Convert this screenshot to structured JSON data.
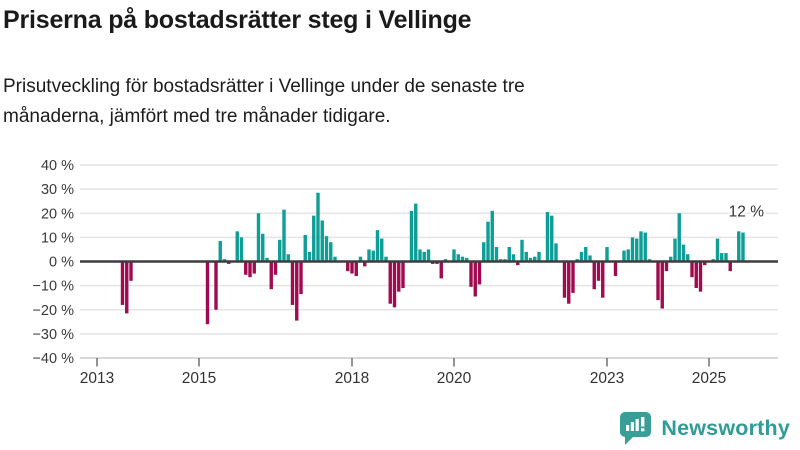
{
  "header": {
    "title": "Priserna på bostadsrätter steg i Vellinge",
    "subtitle": "Prisutveckling för bostadsrätter i Vellinge under de senaste tre\nmånaderna, jämfört med tre månader tidigare."
  },
  "chart_data": {
    "type": "bar",
    "title": "Priserna på bostadsrätter steg i Vellinge",
    "unit": "%",
    "ylim": [
      -40,
      40
    ],
    "grid": true,
    "y_ticks": [
      40,
      30,
      20,
      10,
      0,
      -10,
      -20,
      -30,
      -40
    ],
    "y_tick_labels": [
      "40 %",
      "30 %",
      "20 %",
      "10 %",
      "0 %",
      "−10 %",
      "−20 %",
      "−30 %",
      "−40 %"
    ],
    "x_ticks": [
      2013,
      2015,
      2018,
      2020,
      2023,
      2025
    ],
    "x_tick_labels": [
      "2013",
      "2015",
      "2018",
      "2020",
      "2023",
      "2025"
    ],
    "x_range_months": [
      "2013-01",
      "2025-09"
    ],
    "annotation": {
      "text": "12 %",
      "date": "2025-09",
      "value": 12
    },
    "colors": {
      "positive": "#0d9e96",
      "negative": "#a00b50",
      "gridline": "#e4e4e4",
      "zero_line": "#3d3d3d",
      "axis_text": "#333333"
    },
    "series": [
      {
        "date": "2013-07",
        "value": -18
      },
      {
        "date": "2013-08",
        "value": -21.5
      },
      {
        "date": "2013-09",
        "value": -8
      },
      {
        "date": "2015-03",
        "value": -26
      },
      {
        "date": "2015-05",
        "value": -20
      },
      {
        "date": "2015-06",
        "value": 8.5
      },
      {
        "date": "2015-07",
        "value": 1
      },
      {
        "date": "2015-08",
        "value": -1
      },
      {
        "date": "2015-10",
        "value": 12.5
      },
      {
        "date": "2015-11",
        "value": 10
      },
      {
        "date": "2015-12",
        "value": -5.5
      },
      {
        "date": "2016-01",
        "value": -6.5
      },
      {
        "date": "2016-02",
        "value": -5
      },
      {
        "date": "2016-03",
        "value": 20
      },
      {
        "date": "2016-04",
        "value": 11.5
      },
      {
        "date": "2016-05",
        "value": 1.5
      },
      {
        "date": "2016-06",
        "value": -11.5
      },
      {
        "date": "2016-07",
        "value": -5.5
      },
      {
        "date": "2016-08",
        "value": 9
      },
      {
        "date": "2016-09",
        "value": 21.5
      },
      {
        "date": "2016-10",
        "value": 3
      },
      {
        "date": "2016-11",
        "value": -18
      },
      {
        "date": "2016-12",
        "value": -24.5
      },
      {
        "date": "2017-01",
        "value": -13.5
      },
      {
        "date": "2017-02",
        "value": 11
      },
      {
        "date": "2017-03",
        "value": 4
      },
      {
        "date": "2017-04",
        "value": 19
      },
      {
        "date": "2017-05",
        "value": 28.5
      },
      {
        "date": "2017-06",
        "value": 17
      },
      {
        "date": "2017-07",
        "value": 10.5
      },
      {
        "date": "2017-08",
        "value": 8
      },
      {
        "date": "2017-09",
        "value": 2
      },
      {
        "date": "2017-12",
        "value": -4
      },
      {
        "date": "2018-01",
        "value": -5
      },
      {
        "date": "2018-02",
        "value": -6
      },
      {
        "date": "2018-03",
        "value": 2
      },
      {
        "date": "2018-04",
        "value": -2
      },
      {
        "date": "2018-05",
        "value": 5
      },
      {
        "date": "2018-06",
        "value": 4.5
      },
      {
        "date": "2018-07",
        "value": 13
      },
      {
        "date": "2018-08",
        "value": 9.5
      },
      {
        "date": "2018-09",
        "value": 2
      },
      {
        "date": "2018-10",
        "value": -17.5
      },
      {
        "date": "2018-11",
        "value": -19
      },
      {
        "date": "2018-12",
        "value": -12.5
      },
      {
        "date": "2019-01",
        "value": -11
      },
      {
        "date": "2019-03",
        "value": 21
      },
      {
        "date": "2019-04",
        "value": 24
      },
      {
        "date": "2019-05",
        "value": 5
      },
      {
        "date": "2019-06",
        "value": 4
      },
      {
        "date": "2019-07",
        "value": 5
      },
      {
        "date": "2019-08",
        "value": -1
      },
      {
        "date": "2019-09",
        "value": -1
      },
      {
        "date": "2019-10",
        "value": -7
      },
      {
        "date": "2019-11",
        "value": 1
      },
      {
        "date": "2020-01",
        "value": 5
      },
      {
        "date": "2020-02",
        "value": 3
      },
      {
        "date": "2020-03",
        "value": 2
      },
      {
        "date": "2020-04",
        "value": 1.5
      },
      {
        "date": "2020-05",
        "value": -10.5
      },
      {
        "date": "2020-06",
        "value": -14.5
      },
      {
        "date": "2020-07",
        "value": -9.5
      },
      {
        "date": "2020-08",
        "value": 8
      },
      {
        "date": "2020-09",
        "value": 16.5
      },
      {
        "date": "2020-10",
        "value": 21
      },
      {
        "date": "2020-11",
        "value": 6
      },
      {
        "date": "2020-12",
        "value": 1
      },
      {
        "date": "2021-01",
        "value": 1
      },
      {
        "date": "2021-02",
        "value": 6
      },
      {
        "date": "2021-03",
        "value": 3
      },
      {
        "date": "2021-04",
        "value": -1.5
      },
      {
        "date": "2021-05",
        "value": 9
      },
      {
        "date": "2021-06",
        "value": 4
      },
      {
        "date": "2021-07",
        "value": 1.5
      },
      {
        "date": "2021-08",
        "value": 2
      },
      {
        "date": "2021-09",
        "value": 4
      },
      {
        "date": "2021-11",
        "value": 20.5
      },
      {
        "date": "2021-12",
        "value": 19
      },
      {
        "date": "2022-01",
        "value": 7.5
      },
      {
        "date": "2022-03",
        "value": -15
      },
      {
        "date": "2022-04",
        "value": -17.5
      },
      {
        "date": "2022-05",
        "value": -13
      },
      {
        "date": "2022-06",
        "value": 1
      },
      {
        "date": "2022-07",
        "value": 4
      },
      {
        "date": "2022-08",
        "value": 6
      },
      {
        "date": "2022-09",
        "value": 2.5
      },
      {
        "date": "2022-10",
        "value": -11.5
      },
      {
        "date": "2022-11",
        "value": -8
      },
      {
        "date": "2022-12",
        "value": -15
      },
      {
        "date": "2023-01",
        "value": 6
      },
      {
        "date": "2023-03",
        "value": -6
      },
      {
        "date": "2023-05",
        "value": 4.5
      },
      {
        "date": "2023-06",
        "value": 5
      },
      {
        "date": "2023-07",
        "value": 10
      },
      {
        "date": "2023-08",
        "value": 9.5
      },
      {
        "date": "2023-09",
        "value": 12.5
      },
      {
        "date": "2023-10",
        "value": 12
      },
      {
        "date": "2023-11",
        "value": 1
      },
      {
        "date": "2024-01",
        "value": -16
      },
      {
        "date": "2024-02",
        "value": -19.5
      },
      {
        "date": "2024-03",
        "value": -4
      },
      {
        "date": "2024-04",
        "value": 2
      },
      {
        "date": "2024-05",
        "value": 9.5
      },
      {
        "date": "2024-06",
        "value": 20
      },
      {
        "date": "2024-07",
        "value": 7
      },
      {
        "date": "2024-08",
        "value": 3
      },
      {
        "date": "2024-09",
        "value": -6.5
      },
      {
        "date": "2024-10",
        "value": -11
      },
      {
        "date": "2024-11",
        "value": -12.5
      },
      {
        "date": "2024-12",
        "value": -1.5
      },
      {
        "date": "2025-02",
        "value": 1
      },
      {
        "date": "2025-03",
        "value": 9.5
      },
      {
        "date": "2025-04",
        "value": 3.5
      },
      {
        "date": "2025-05",
        "value": 3.5
      },
      {
        "date": "2025-06",
        "value": -4
      },
      {
        "date": "2025-08",
        "value": 12.5
      },
      {
        "date": "2025-09",
        "value": 12
      }
    ]
  },
  "footer": {
    "brand": "Newsworthy",
    "brand_color": "#2f9c95",
    "icon": "newsworthy-speech-bubble-bar-chart-icon"
  }
}
